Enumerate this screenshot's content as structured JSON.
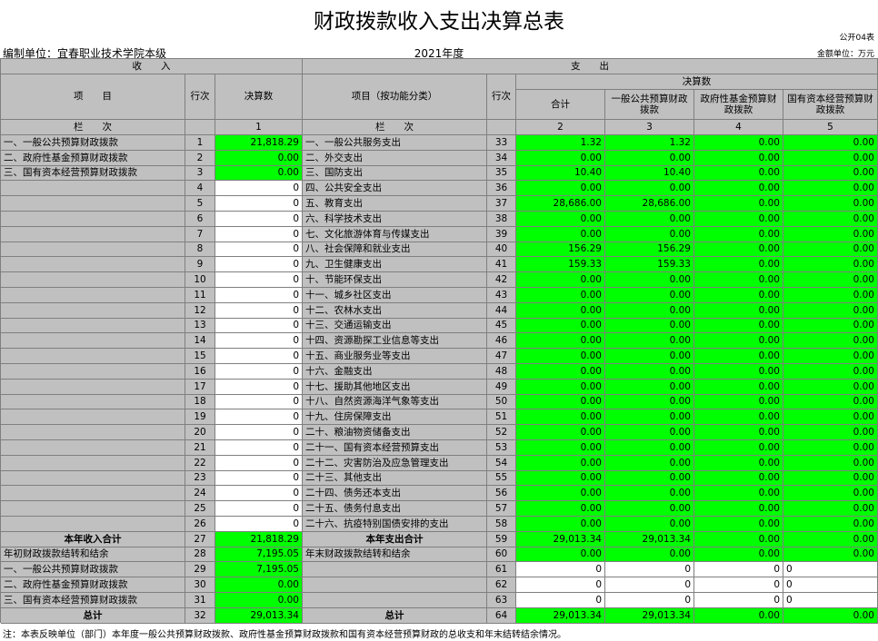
{
  "header": {
    "title": "财政拨款收入支出决算总表",
    "form_no": "公开04表",
    "unit": "编制单位：宜春职业技术学院本级",
    "year": "2021年度",
    "amount_unit": "金额单位：万元"
  },
  "table": {
    "group_headers": [
      "收　　入",
      "支　　出"
    ],
    "column_headers": {
      "left_item": "项　　目",
      "left_line": "行次",
      "left_value": "决算数",
      "right_item": "项目（按功能分类）",
      "right_line": "行次",
      "right_group": "决算数",
      "right_columns": [
        "合计",
        "一般公共预算财政拨款",
        "政府性基金预算财政拨款",
        "国有资本经营预算财政拨款"
      ]
    },
    "index_row": [
      "栏　　次",
      null,
      "1",
      "栏　　次",
      null,
      "2",
      "3",
      "4",
      "5"
    ],
    "rows": [
      [
        "一、一般公共预算财政拨款",
        "1",
        "21,818.29",
        "一、一般公共服务支出",
        "33",
        "1.32",
        "1.32",
        "0.00",
        "0.00"
      ],
      [
        "二、政府性基金预算财政拨款",
        "2",
        "0.00",
        "二、外交支出",
        "34",
        "0.00",
        "0.00",
        "0.00",
        "0.00"
      ],
      [
        "三、国有资本经营预算财政拨款",
        "3",
        "0.00",
        "三、国防支出",
        "35",
        "10.40",
        "10.40",
        "0.00",
        "0.00"
      ],
      [
        null,
        "4",
        "0",
        "四、公共安全支出",
        "36",
        "0.00",
        "0.00",
        "0.00",
        "0.00"
      ],
      [
        null,
        "5",
        "0",
        "五、教育支出",
        "37",
        "28,686.00",
        "28,686.00",
        "0.00",
        "0.00"
      ],
      [
        null,
        "6",
        "0",
        "六、科学技术支出",
        "38",
        "0.00",
        "0.00",
        "0.00",
        "0.00"
      ],
      [
        null,
        "7",
        "0",
        "七、文化旅游体育与传媒支出",
        "39",
        "0.00",
        "0.00",
        "0.00",
        "0.00"
      ],
      [
        null,
        "8",
        "0",
        "八、社会保障和就业支出",
        "40",
        "156.29",
        "156.29",
        "0.00",
        "0.00"
      ],
      [
        null,
        "9",
        "0",
        "九、卫生健康支出",
        "41",
        "159.33",
        "159.33",
        "0.00",
        "0.00"
      ],
      [
        null,
        "10",
        "0",
        "十、节能环保支出",
        "42",
        "0.00",
        "0.00",
        "0.00",
        "0.00"
      ],
      [
        null,
        "11",
        "0",
        "十一、城乡社区支出",
        "43",
        "0.00",
        "0.00",
        "0.00",
        "0.00"
      ],
      [
        null,
        "12",
        "0",
        "十二、农林水支出",
        "44",
        "0.00",
        "0.00",
        "0.00",
        "0.00"
      ],
      [
        null,
        "13",
        "0",
        "十三、交通运输支出",
        "45",
        "0.00",
        "0.00",
        "0.00",
        "0.00"
      ],
      [
        null,
        "14",
        "0",
        "十四、资源勘探工业信息等支出",
        "46",
        "0.00",
        "0.00",
        "0.00",
        "0.00"
      ],
      [
        null,
        "15",
        "0",
        "十五、商业服务业等支出",
        "47",
        "0.00",
        "0.00",
        "0.00",
        "0.00"
      ],
      [
        null,
        "16",
        "0",
        "十六、金融支出",
        "48",
        "0.00",
        "0.00",
        "0.00",
        "0.00"
      ],
      [
        null,
        "17",
        "0",
        "十七、援助其他地区支出",
        "49",
        "0.00",
        "0.00",
        "0.00",
        "0.00"
      ],
      [
        null,
        "18",
        "0",
        "十八、自然资源海洋气象等支出",
        "50",
        "0.00",
        "0.00",
        "0.00",
        "0.00"
      ],
      [
        null,
        "19",
        "0",
        "十九、住房保障支出",
        "51",
        "0.00",
        "0.00",
        "0.00",
        "0.00"
      ],
      [
        null,
        "20",
        "0",
        "二十、粮油物资储备支出",
        "52",
        "0.00",
        "0.00",
        "0.00",
        "0.00"
      ],
      [
        null,
        "21",
        "0",
        "二十一、国有资本经营预算支出",
        "53",
        "0.00",
        "0.00",
        "0.00",
        "0.00"
      ],
      [
        null,
        "22",
        "0",
        "二十二、灾害防治及应急管理支出",
        "54",
        "0.00",
        "0.00",
        "0.00",
        "0.00"
      ],
      [
        null,
        "23",
        "0",
        "二十三、其他支出",
        "55",
        "0.00",
        "0.00",
        "0.00",
        "0.00"
      ],
      [
        null,
        "24",
        "0",
        "二十四、债务还本支出",
        "56",
        "0.00",
        "0.00",
        "0.00",
        "0.00"
      ],
      [
        null,
        "25",
        "0",
        "二十五、债务付息支出",
        "57",
        "0.00",
        "0.00",
        "0.00",
        "0.00"
      ],
      [
        null,
        "26",
        "0",
        "二十六、抗疫特别国债安排的支出",
        "58",
        "0.00",
        "0.00",
        "0.00",
        "0.00"
      ],
      [
        "本年收入合计",
        "27",
        "21,818.29",
        "本年支出合计",
        "59",
        "29,013.34",
        "29,013.34",
        "0.00",
        "0.00"
      ],
      [
        "年初财政拨款结转和结余",
        "28",
        "7,195.05",
        "年末财政拨款结转和结余",
        "60",
        "0.00",
        "0.00",
        "0.00",
        "0.00"
      ],
      [
        "一、一般公共预算财政拨款",
        "29",
        "7,195.05",
        null,
        "61",
        "0",
        "0",
        "0",
        "0"
      ],
      [
        "二、政府性基金预算财政拨款",
        "30",
        "0.00",
        null,
        "62",
        "0",
        "0",
        "0",
        "0"
      ],
      [
        "三、国有资本经营预算财政拨款",
        "31",
        "0.00",
        null,
        "63",
        "0",
        "0",
        "0",
        "0"
      ],
      [
        "总计",
        "32",
        "29,013.34",
        "总计",
        "64",
        "29,013.34",
        "29,013.34",
        "0.00",
        "0.00"
      ]
    ]
  },
  "note": "注：本表反映单位（部门）本年度一般公共预算财政拨款、政府性基金预算财政拨款和国有资本经营预算财政的总收支和年末结转结余情况。"
}
